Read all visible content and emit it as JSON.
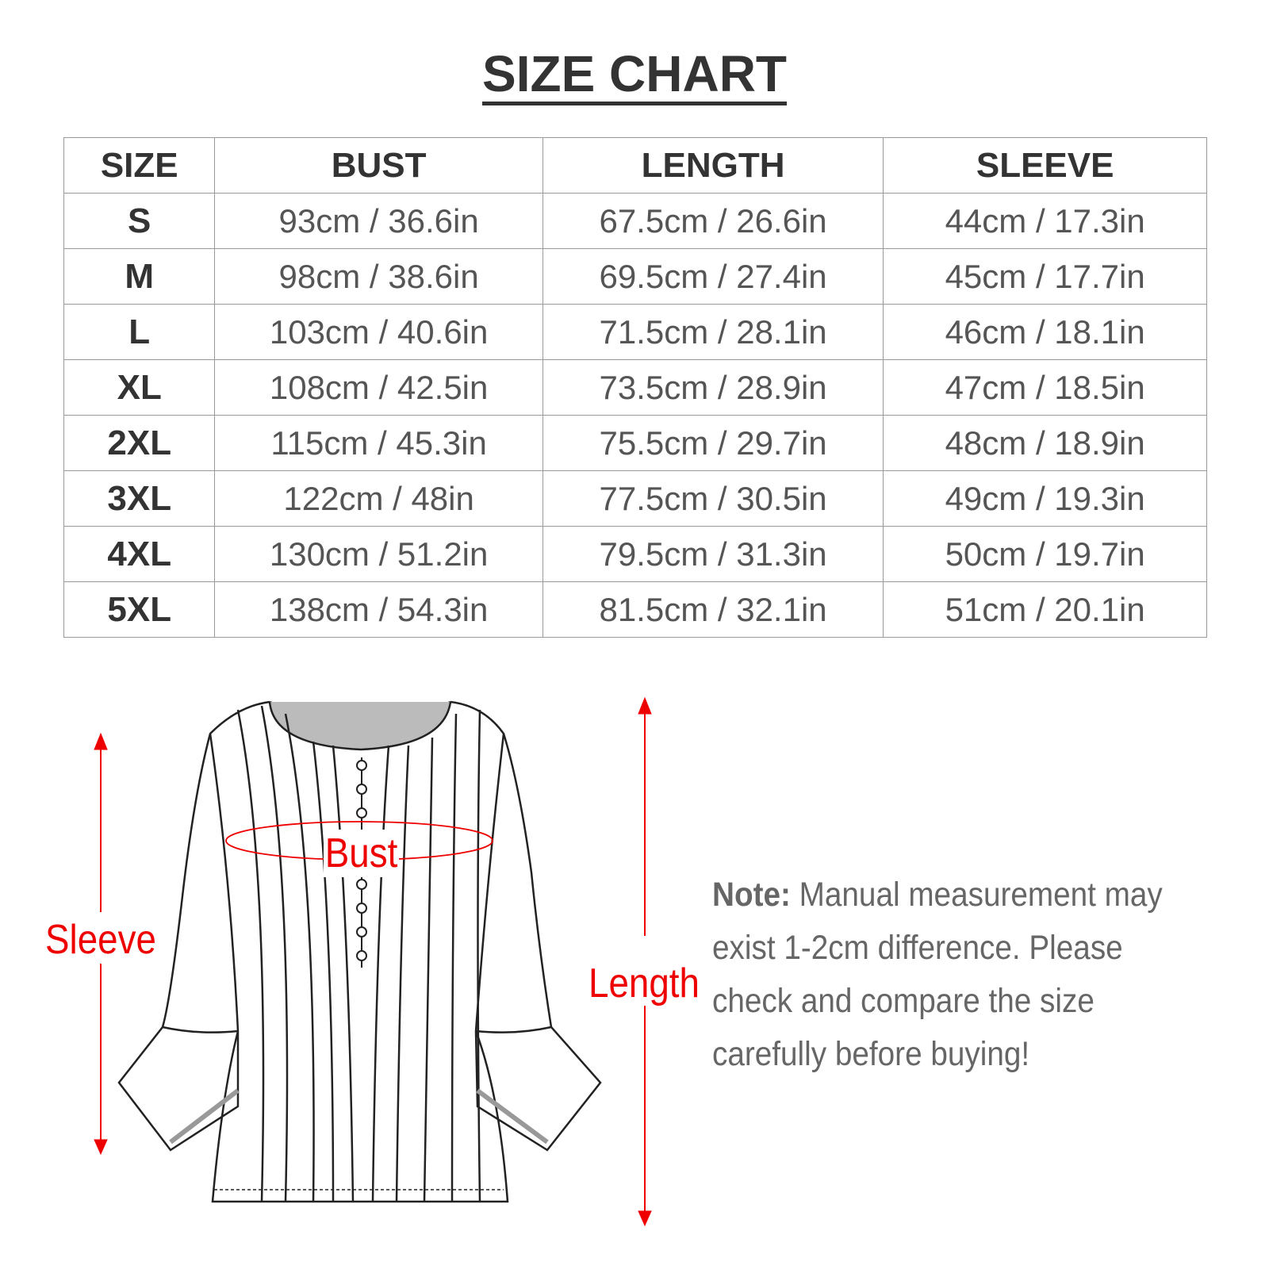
{
  "title": "SIZE CHART",
  "table": {
    "headers": [
      "SIZE",
      "BUST",
      "LENGTH",
      "SLEEVE"
    ],
    "rows": [
      [
        "S",
        "93cm / 36.6in",
        "67.5cm / 26.6in",
        "44cm / 17.3in"
      ],
      [
        "M",
        "98cm / 38.6in",
        "69.5cm / 27.4in",
        "45cm / 17.7in"
      ],
      [
        "L",
        "103cm / 40.6in",
        "71.5cm / 28.1in",
        "46cm / 18.1in"
      ],
      [
        "XL",
        "108cm / 42.5in",
        "73.5cm / 28.9in",
        "47cm / 18.5in"
      ],
      [
        "2XL",
        "115cm / 45.3in",
        "75.5cm / 29.7in",
        "48cm / 18.9in"
      ],
      [
        "3XL",
        "122cm / 48in",
        "77.5cm / 30.5in",
        "49cm / 19.3in"
      ],
      [
        "4XL",
        "130cm / 51.2in",
        "79.5cm / 31.3in",
        "50cm / 19.7in"
      ],
      [
        "5XL",
        "138cm / 54.3in",
        "81.5cm / 32.1in",
        "51cm / 20.1in"
      ]
    ]
  },
  "diagram": {
    "labels": {
      "bust": "Bust",
      "sleeve": "Sleeve",
      "length": "Length"
    },
    "accent_color": "#e00000"
  },
  "note": {
    "label": "Note:",
    "text": " Manual measurement may exist 1-2cm difference. Please check and compare the size carefully before buying!"
  }
}
